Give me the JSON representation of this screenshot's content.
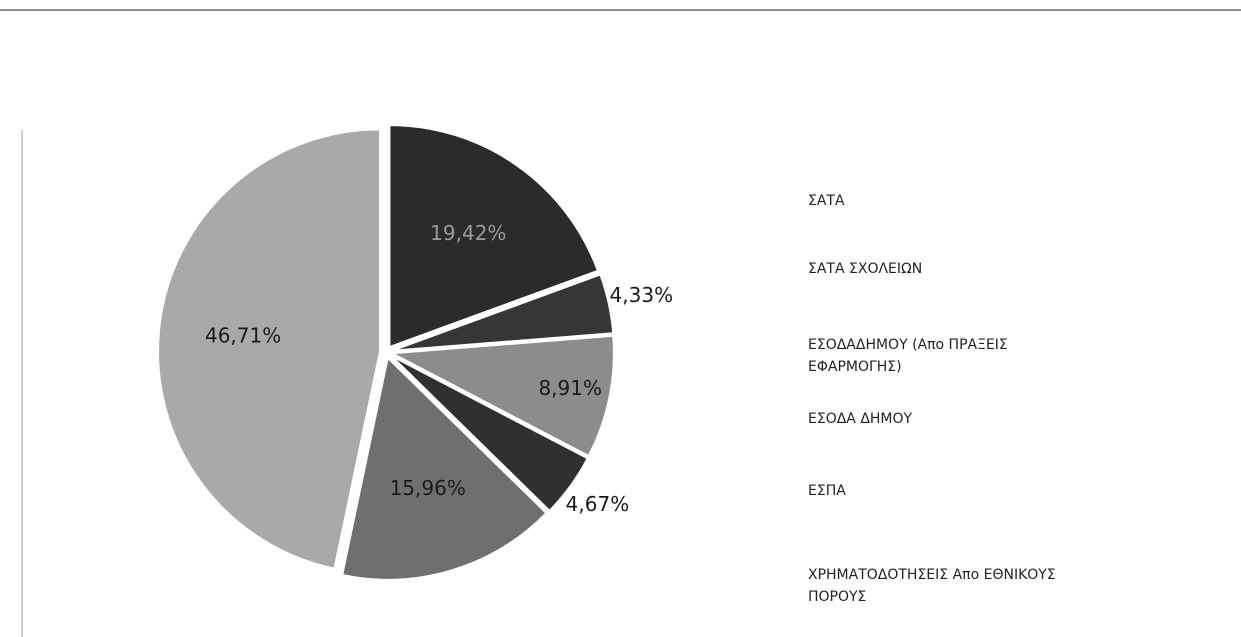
{
  "chart_data": {
    "type": "pie",
    "series": [
      {
        "name": "ΣΑΤΑ",
        "color": "#2b2b2b",
        "values": [
          19.42
        ],
        "value_labels": [
          "19,42%"
        ]
      },
      {
        "name": "ΣΑΤΑ ΣΧΟΛΕΙΩΝ",
        "color": "#363636",
        "values": [
          4.33
        ],
        "value_labels": [
          "4,33%"
        ]
      },
      {
        "name": "ΕΣΟΔΑΔΗΜΟΥ (Απο ΠΡΑΞΕΙΣ ΕΦΑΡΜΟΓΗΣ)",
        "color": "#8c8c8c",
        "values": [
          8.91
        ],
        "value_labels": [
          "8,91%"
        ]
      },
      {
        "name": "ΕΣΟΔΑ ΔΗΜΟΥ",
        "color": "#303030",
        "values": [
          4.67
        ],
        "value_labels": [
          "4,67%"
        ]
      },
      {
        "name": "ΕΣΠΑ",
        "color": "#6f6f6f",
        "values": [
          15.96
        ],
        "value_labels": [
          "15,96%"
        ]
      },
      {
        "name": "ΧΡΗΜΑΤΟΔΟΤΗΣΕΙΣ Απο ΕΘΝΙΚΟΥΣ ΠΟΡΟΥΣ",
        "color": "#a9a9a9",
        "values": [
          46.71
        ],
        "value_labels": [
          "46,71%"
        ]
      }
    ]
  }
}
